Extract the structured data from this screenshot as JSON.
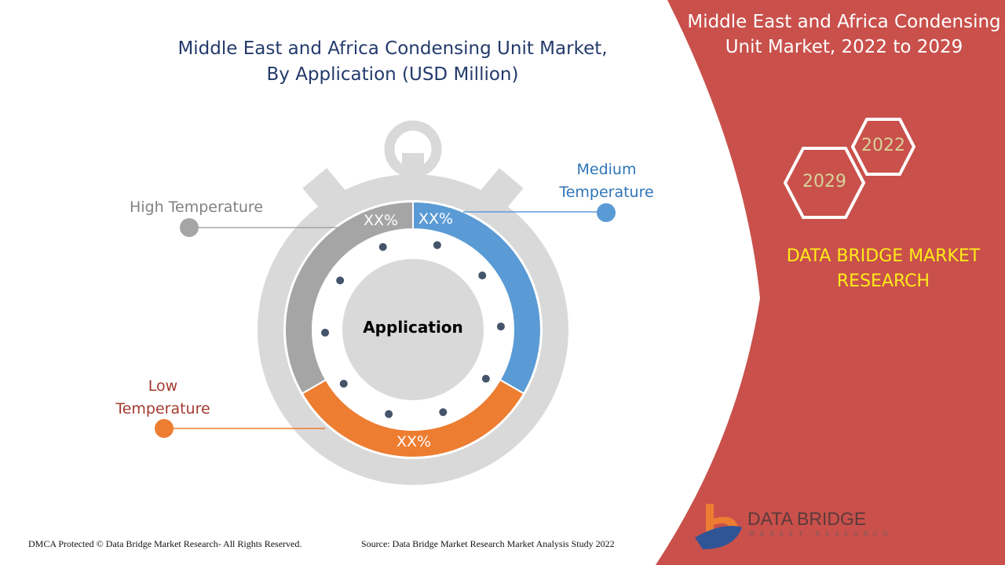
{
  "title": "Middle East and Africa Condensing Unit Market,\nBy Application (USD Million)",
  "title_lines": [
    "Middle East and Africa Condensing Unit Market,",
    "By Application (USD Million)"
  ],
  "center_label": "Application",
  "chart_data": {
    "type": "pie",
    "title": "Middle East and Africa Condensing Unit Market, By Application (USD Million)",
    "categories": [
      "Medium Temperature",
      "Low Temperature",
      "High Temperature"
    ],
    "data_labels": [
      "XX%",
      "XX%",
      "XX%"
    ],
    "colors": [
      "#5b9bd5",
      "#ed7d31",
      "#a5a5a5"
    ],
    "label_colors": [
      "#2e75b6",
      "#a33a2e",
      "#808080"
    ]
  },
  "labels": {
    "medium": [
      "Medium",
      "Temperature"
    ],
    "low": [
      "Low",
      "Temperature"
    ],
    "high": "High Temperature"
  },
  "side_panel": {
    "title_lines": [
      "Middle East and Africa Condensing",
      "Unit Market, 2022 to 2029"
    ],
    "year_start": "2022",
    "year_end": "2029",
    "brand_lines": [
      "DATA BRIDGE MARKET",
      "RESEARCH"
    ],
    "color": "#c9504b"
  },
  "logo": {
    "name": "DATA BRIDGE",
    "sub": "MARKET RESEARCH"
  },
  "footer": {
    "left": "DMCA Protected © Data Bridge Market Research- All Rights Reserved.",
    "source": "Source: Data Bridge Market Research Market Analysis Study 2022"
  }
}
